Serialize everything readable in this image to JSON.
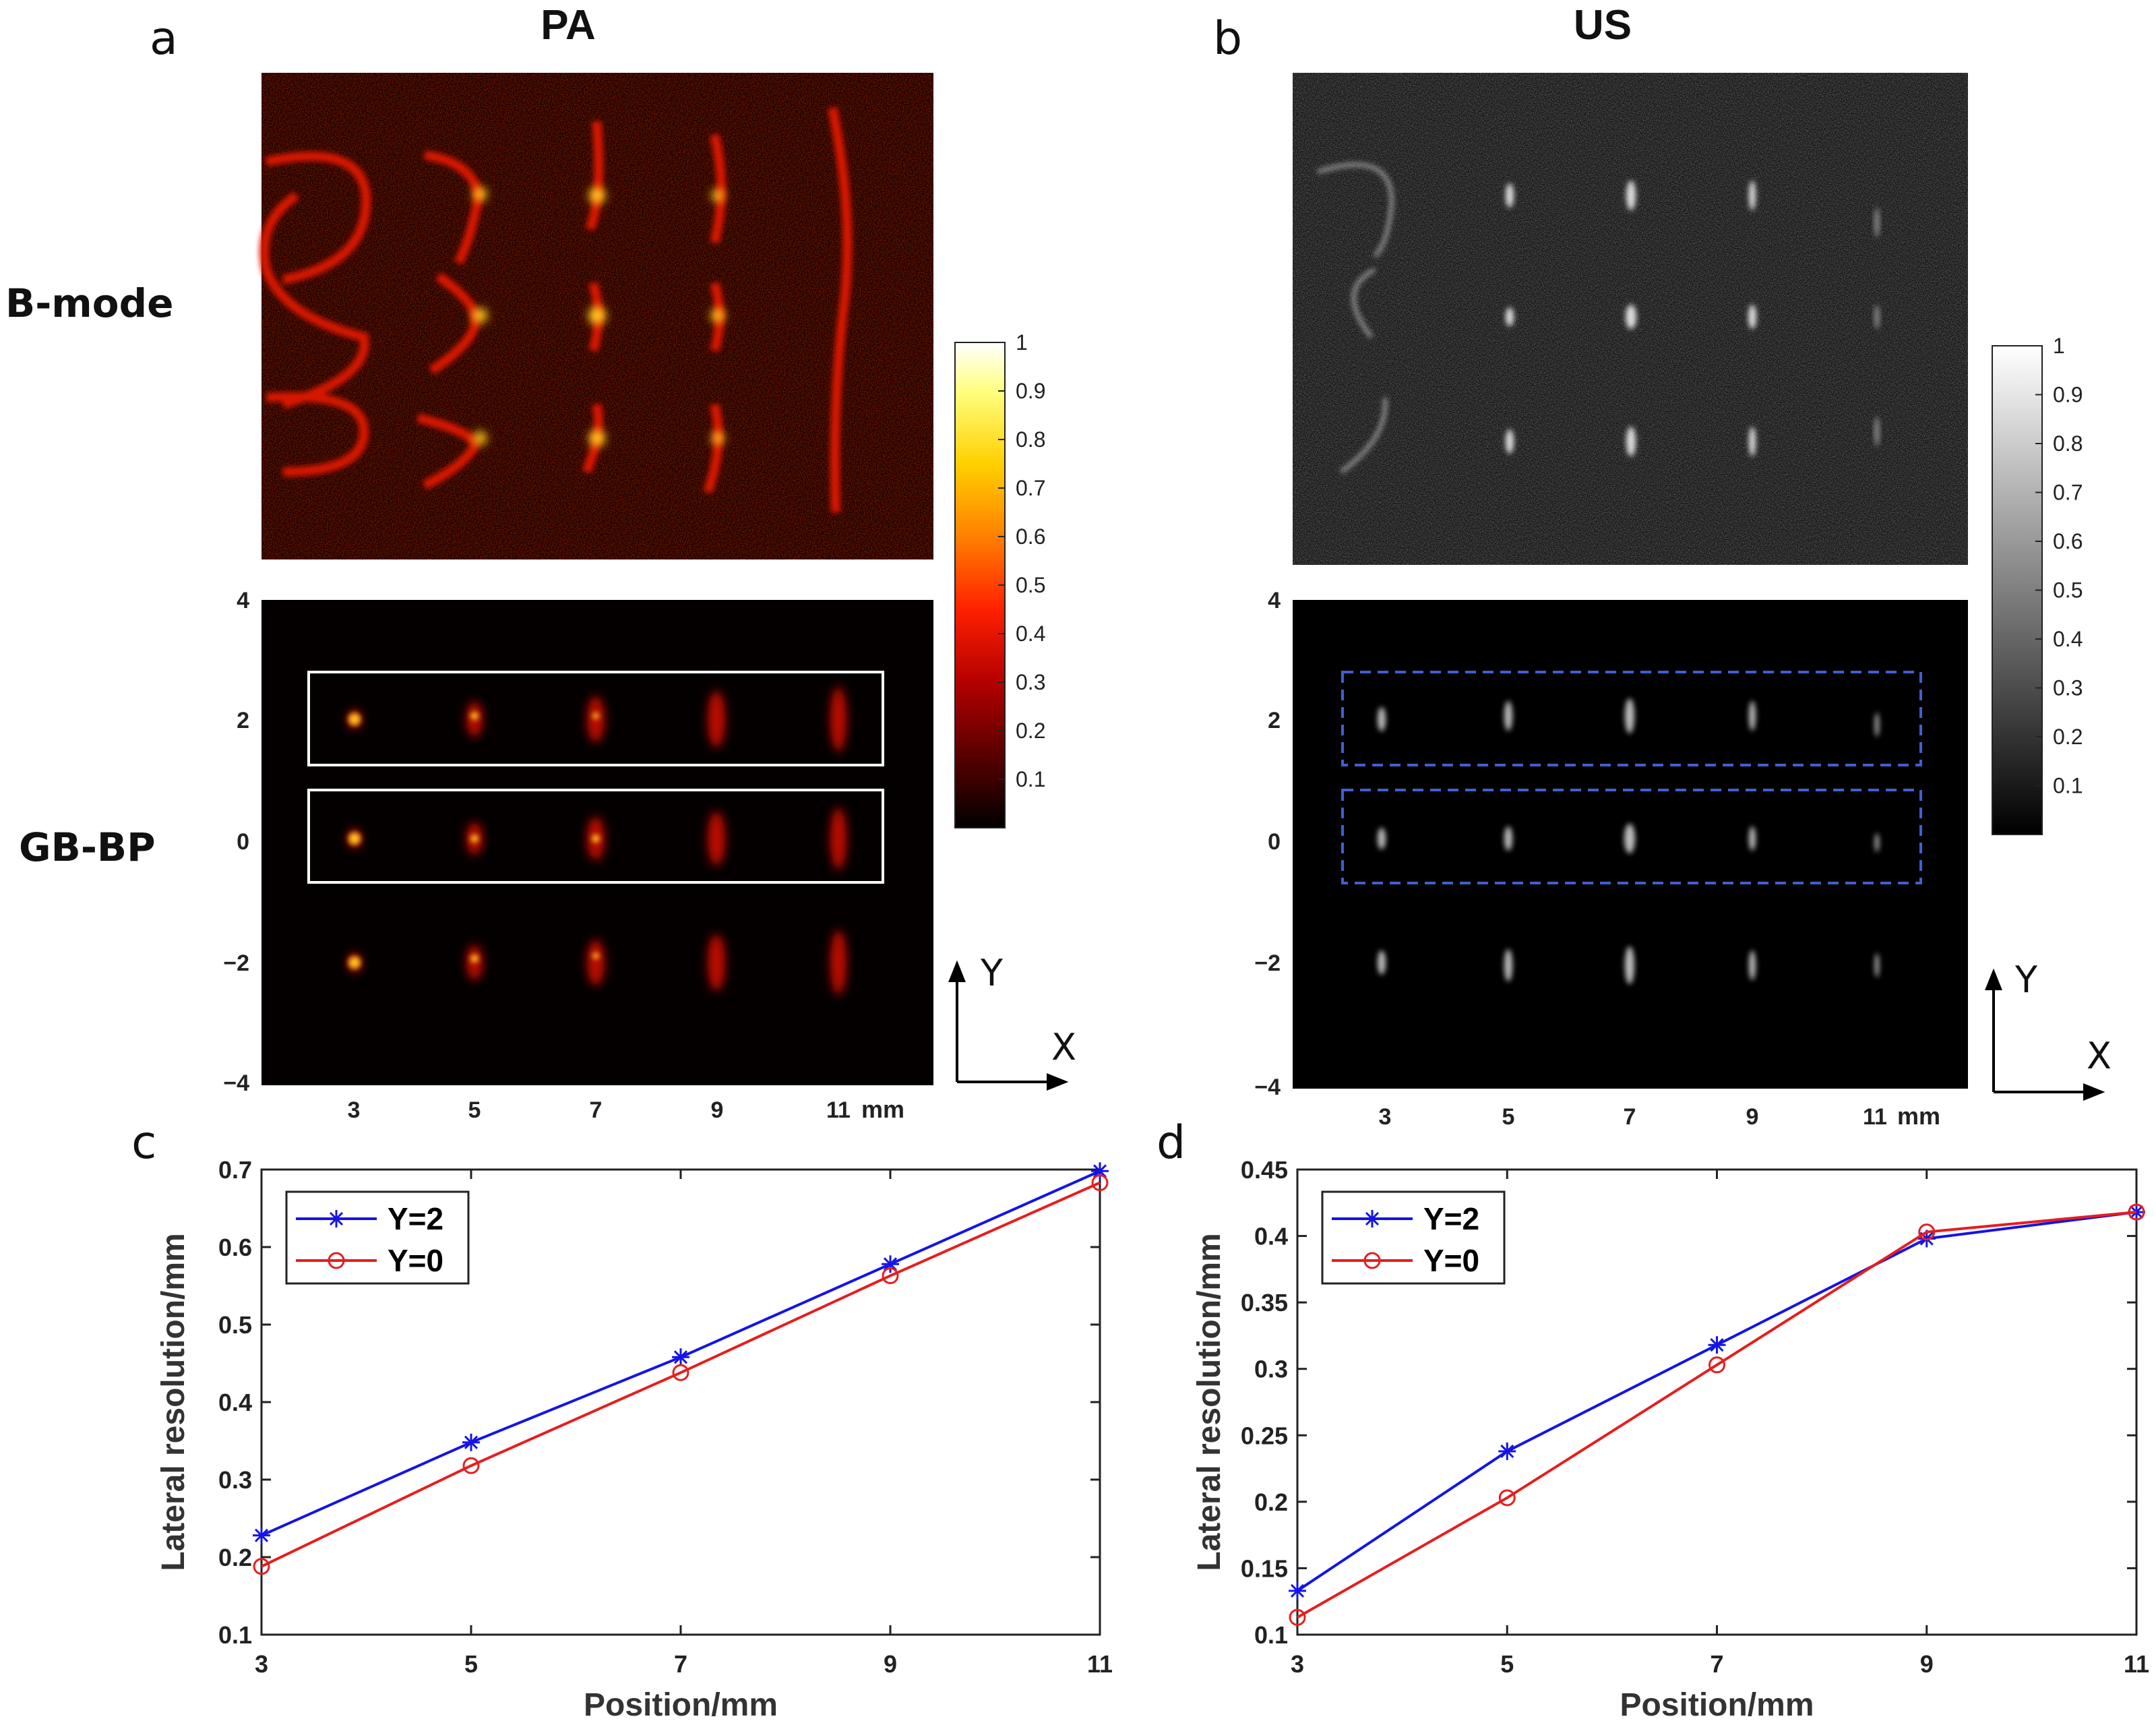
{
  "panels": {
    "a": {
      "letter": "a",
      "title": "PA"
    },
    "b": {
      "letter": "b",
      "title": "US"
    },
    "c": {
      "letter": "c"
    },
    "d": {
      "letter": "d"
    }
  },
  "row_labels": {
    "bmode": "B-mode",
    "gbbp": "GB-BP"
  },
  "image_axes": {
    "y_ticks": [
      "4",
      "2",
      "0",
      "−2",
      "−4"
    ],
    "x_ticks": [
      "3",
      "5",
      "7",
      "9",
      "11"
    ],
    "x_unit": "mm",
    "dir_y": "Y",
    "dir_x": "X"
  },
  "colorbar": {
    "ticks": [
      "1",
      "0.9",
      "0.8",
      "0.7",
      "0.6",
      "0.5",
      "0.4",
      "0.3",
      "0.2",
      "0.1"
    ],
    "hot_colors": [
      "#000000",
      "#5a0000",
      "#b40000",
      "#ff2000",
      "#ff8000",
      "#ffd000",
      "#ffff80",
      "#ffffff"
    ],
    "gray_colors": [
      "#000000",
      "#ffffff"
    ]
  },
  "colors": {
    "y2": "#1414e6",
    "y0": "#e61e1e",
    "roi_pa": "#ffffff",
    "roi_us": "#4060d0"
  },
  "chart_data": [
    {
      "id": "c",
      "type": "line",
      "x": [
        3,
        5,
        7,
        9,
        11
      ],
      "series": [
        {
          "name": "Y=2",
          "marker": "asterisk",
          "values": [
            0.228,
            0.348,
            0.458,
            0.578,
            0.698
          ]
        },
        {
          "name": "Y=0",
          "marker": "circle",
          "values": [
            0.188,
            0.318,
            0.438,
            0.563,
            0.683
          ]
        }
      ],
      "xlabel": "Position/mm",
      "ylabel": "Lateral resolution/mm",
      "xlim": [
        3,
        11
      ],
      "ylim": [
        0.1,
        0.7
      ],
      "xticks": [
        "3",
        "5",
        "7",
        "9",
        "11"
      ],
      "yticks": [
        "0.1",
        "0.2",
        "0.3",
        "0.4",
        "0.5",
        "0.6",
        "0.7"
      ],
      "legend": "top-left"
    },
    {
      "id": "d",
      "type": "line",
      "x": [
        3,
        5,
        7,
        9,
        11
      ],
      "series": [
        {
          "name": "Y=2",
          "marker": "asterisk",
          "values": [
            0.133,
            0.238,
            0.318,
            0.398,
            0.418
          ]
        },
        {
          "name": "Y=0",
          "marker": "circle",
          "values": [
            0.113,
            0.203,
            0.303,
            0.403,
            0.418
          ]
        }
      ],
      "xlabel": "Position/mm",
      "ylabel": "Lateral resolution/mm",
      "xlim": [
        3,
        11
      ],
      "ylim": [
        0.1,
        0.45
      ],
      "xticks": [
        "3",
        "5",
        "7",
        "9",
        "11"
      ],
      "yticks": [
        "0.1",
        "0.15",
        "0.2",
        "0.25",
        "0.3",
        "0.35",
        "0.4",
        "0.45"
      ],
      "legend": "top-left"
    }
  ]
}
